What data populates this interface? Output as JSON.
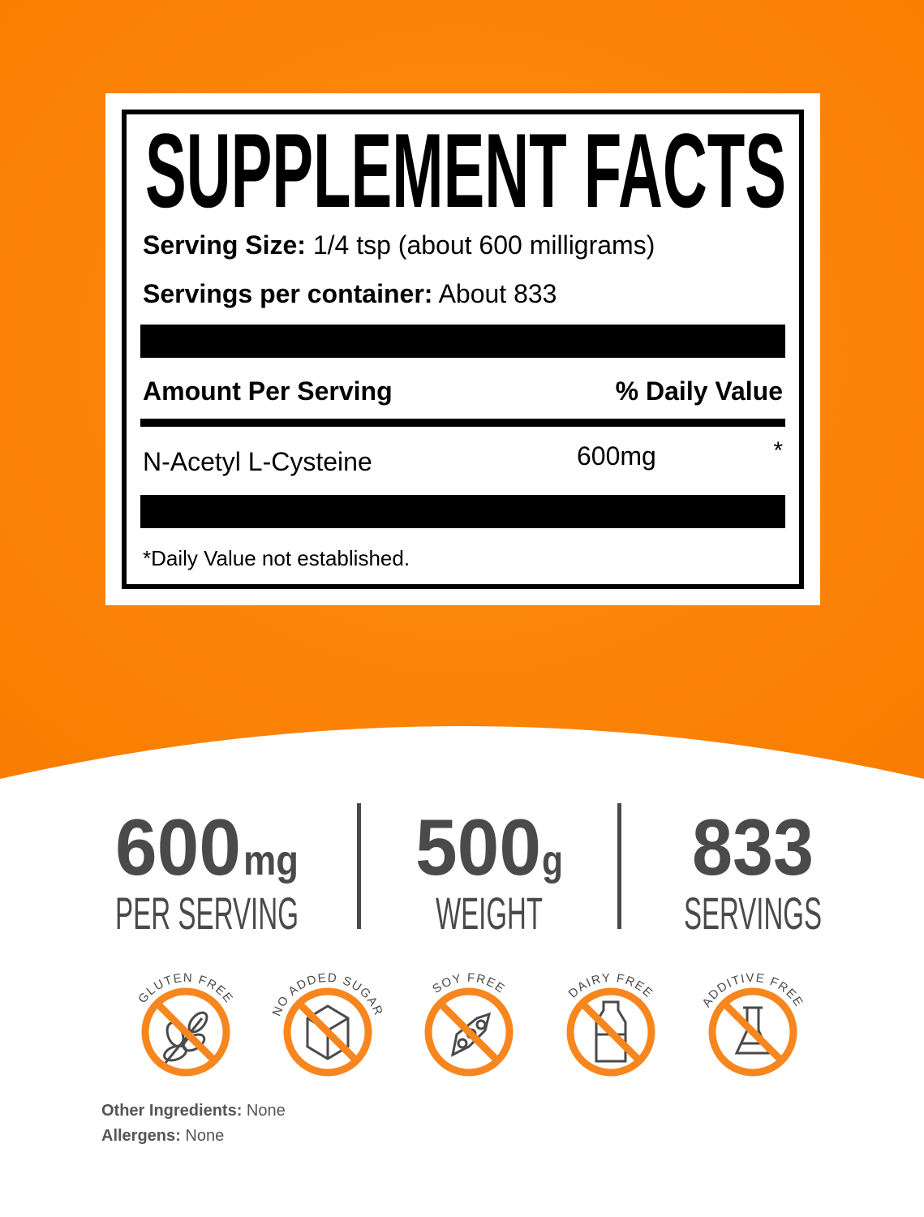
{
  "facts": {
    "title": "SUPPLEMENT FACTS",
    "serving_size_label": "Serving Size:",
    "serving_size_value": "1/4 tsp (about 600 milligrams)",
    "servings_label": "Servings per container:",
    "servings_value": "About 833",
    "amount_header": "Amount Per Serving",
    "dv_header": "% Daily Value",
    "ingredient": "N-Acetyl L-Cysteine",
    "amount": "600mg",
    "dv": "*",
    "footnote": "*Daily Value not established."
  },
  "stats": [
    {
      "value": "600",
      "unit": "mg",
      "label": "PER SERVING"
    },
    {
      "value": "500",
      "unit": "g",
      "label": "WEIGHT"
    },
    {
      "value": "833",
      "unit": "",
      "label": "SERVINGS"
    }
  ],
  "badges": [
    {
      "label": "GLUTEN FREE",
      "icon": "wheat-icon"
    },
    {
      "label": "NO ADDED SUGAR",
      "icon": "sugar-cube-icon"
    },
    {
      "label": "SOY FREE",
      "icon": "soybean-icon"
    },
    {
      "label": "DAIRY FREE",
      "icon": "milk-bottle-icon"
    },
    {
      "label": "ADDITIVE FREE",
      "icon": "flask-icon"
    }
  ],
  "colors": {
    "orange": "#ff8200",
    "badge": "#f7861f",
    "text_gray": "#4a4a4a"
  },
  "footer": {
    "other_label": "Other Ingredients:",
    "other_value": "None",
    "allergens_label": "Allergens:",
    "allergens_value": "None"
  }
}
